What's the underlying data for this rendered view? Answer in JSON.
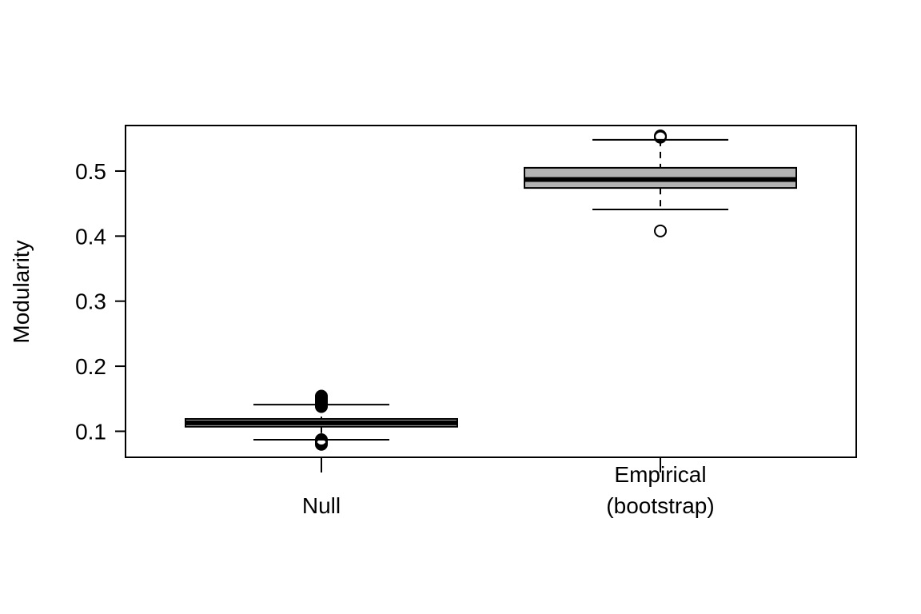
{
  "chart_data": {
    "type": "boxplot",
    "title": "",
    "xlabel": "",
    "ylabel": "Modularity",
    "ylim": [
      0.06,
      0.57
    ],
    "yticks": [
      0.1,
      0.2,
      0.3,
      0.4,
      0.5
    ],
    "ytick_labels": [
      "0.1",
      "0.2",
      "0.3",
      "0.4",
      "0.5"
    ],
    "grid": false,
    "legend": "none",
    "box_fill": "#b3b3b3",
    "line_color": "#000000",
    "categories": [
      {
        "label_lines": [
          "Null"
        ]
      },
      {
        "label_lines": [
          "Empirical",
          "(bootstrap)"
        ]
      }
    ],
    "boxes": [
      {
        "whisker_low": 0.087,
        "q1": 0.107,
        "median": 0.113,
        "q3": 0.119,
        "whisker_high": 0.141,
        "outliers": [
          0.08,
          0.082,
          0.084,
          0.086,
          0.087,
          0.138,
          0.14,
          0.142,
          0.144,
          0.146,
          0.148,
          0.15,
          0.152,
          0.154
        ]
      },
      {
        "whisker_low": 0.441,
        "q1": 0.474,
        "median": 0.487,
        "q3": 0.505,
        "whisker_high": 0.548,
        "outliers": [
          0.408,
          0.552,
          0.554
        ]
      }
    ]
  }
}
